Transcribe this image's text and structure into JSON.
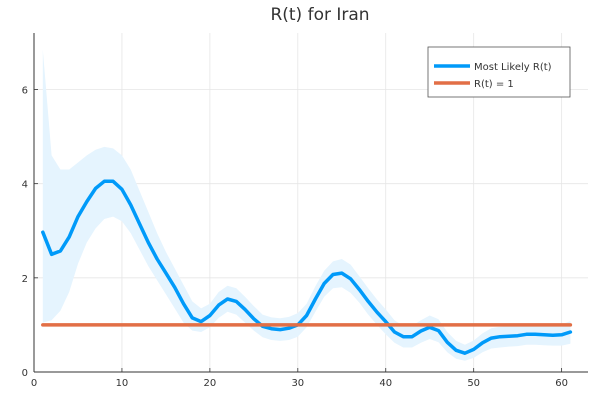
{
  "chart_data": {
    "type": "line",
    "title": "R(t) for Iran",
    "xlabel": "",
    "ylabel": "",
    "xlim": [
      0,
      63
    ],
    "ylim": [
      0,
      7.2
    ],
    "xticks": [
      0,
      10,
      20,
      30,
      40,
      50,
      60
    ],
    "yticks": [
      0,
      2,
      4,
      6
    ],
    "grid": true,
    "legend_position": "top-right",
    "series": [
      {
        "name": "Most Likely R(t)",
        "color": "#009af9",
        "band_color": "#e5f4fe",
        "x": [
          1,
          2,
          3,
          4,
          5,
          6,
          7,
          8,
          9,
          10,
          11,
          12,
          13,
          14,
          15,
          16,
          17,
          18,
          19,
          20,
          21,
          22,
          23,
          24,
          25,
          26,
          27,
          28,
          29,
          30,
          31,
          32,
          33,
          34,
          35,
          36,
          37,
          38,
          39,
          40,
          41,
          42,
          43,
          44,
          45,
          46,
          47,
          48,
          49,
          50,
          51,
          52,
          53,
          54,
          55,
          56,
          57,
          58,
          59,
          60,
          61
        ],
        "y": [
          2.97,
          2.5,
          2.57,
          2.87,
          3.3,
          3.62,
          3.9,
          4.05,
          4.05,
          3.88,
          3.55,
          3.15,
          2.75,
          2.4,
          2.1,
          1.8,
          1.45,
          1.15,
          1.07,
          1.2,
          1.42,
          1.55,
          1.5,
          1.33,
          1.13,
          0.97,
          0.92,
          0.9,
          0.93,
          1.0,
          1.2,
          1.55,
          1.88,
          2.07,
          2.1,
          1.98,
          1.75,
          1.5,
          1.27,
          1.07,
          0.85,
          0.75,
          0.75,
          0.87,
          0.95,
          0.88,
          0.63,
          0.46,
          0.4,
          0.48,
          0.62,
          0.72,
          0.75,
          0.76,
          0.77,
          0.8,
          0.8,
          0.79,
          0.78,
          0.79,
          0.85
        ],
        "lower": [
          1.05,
          1.1,
          1.3,
          1.7,
          2.3,
          2.75,
          3.05,
          3.25,
          3.3,
          3.2,
          2.95,
          2.6,
          2.25,
          1.95,
          1.65,
          1.35,
          1.05,
          0.88,
          0.85,
          0.95,
          1.15,
          1.28,
          1.22,
          1.05,
          0.88,
          0.74,
          0.68,
          0.66,
          0.68,
          0.75,
          0.95,
          1.28,
          1.6,
          1.78,
          1.8,
          1.68,
          1.47,
          1.22,
          1.0,
          0.8,
          0.62,
          0.52,
          0.52,
          0.62,
          0.7,
          0.63,
          0.42,
          0.28,
          0.24,
          0.3,
          0.42,
          0.5,
          0.52,
          0.54,
          0.55,
          0.58,
          0.58,
          0.57,
          0.56,
          0.56,
          0.6
        ],
        "upper": [
          6.85,
          4.6,
          4.3,
          4.3,
          4.45,
          4.6,
          4.72,
          4.78,
          4.75,
          4.6,
          4.3,
          3.85,
          3.4,
          2.95,
          2.55,
          2.2,
          1.85,
          1.5,
          1.35,
          1.45,
          1.7,
          1.83,
          1.78,
          1.6,
          1.4,
          1.22,
          1.16,
          1.14,
          1.17,
          1.25,
          1.45,
          1.82,
          2.15,
          2.35,
          2.4,
          2.28,
          2.03,
          1.78,
          1.54,
          1.33,
          1.1,
          0.98,
          0.98,
          1.1,
          1.2,
          1.12,
          0.85,
          0.66,
          0.58,
          0.67,
          0.82,
          0.93,
          0.96,
          0.97,
          0.98,
          1.02,
          1.02,
          1.01,
          1.0,
          1.01,
          1.08
        ]
      },
      {
        "name": "R(t) = 1",
        "color": "#e26f46",
        "x": [
          1,
          61
        ],
        "y": [
          1,
          1
        ]
      }
    ]
  }
}
